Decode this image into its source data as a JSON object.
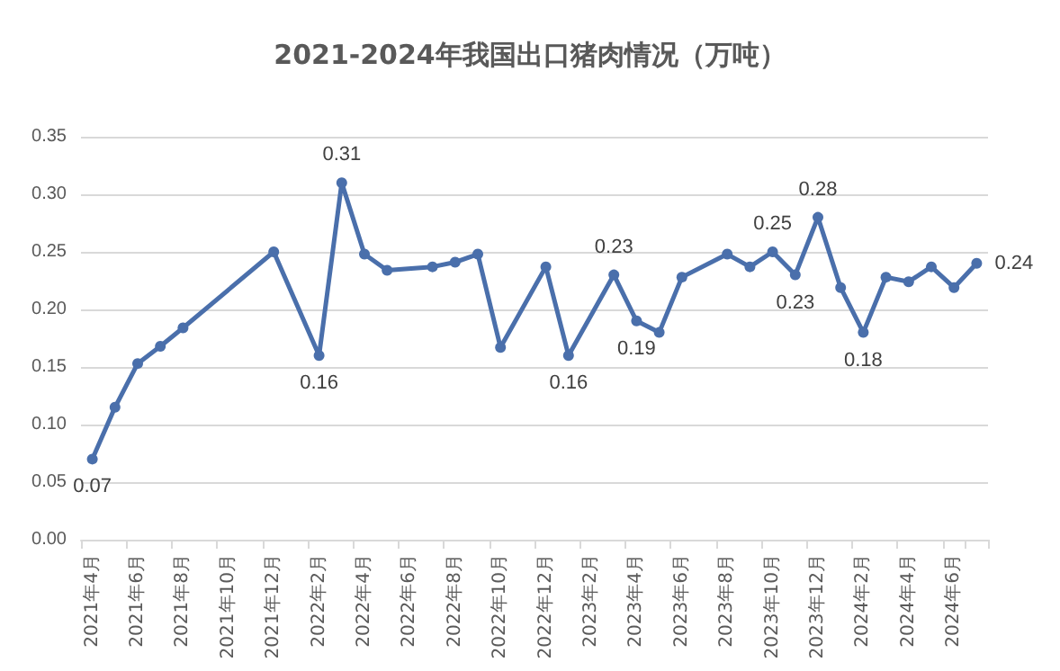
{
  "chart_data": {
    "type": "line",
    "title": "2021-2024年我国出口猪肉情况（万吨）",
    "categories": [
      "2021年4月",
      null,
      "2021年6月",
      null,
      "2021年8月",
      null,
      "2021年10月",
      null,
      "2021年12月",
      null,
      "2022年2月",
      null,
      "2022年4月",
      null,
      "2022年6月",
      null,
      "2022年8月",
      null,
      "2022年10月",
      null,
      "2022年12月",
      null,
      "2023年2月",
      null,
      "2023年4月",
      null,
      "2023年6月",
      null,
      "2023年8月",
      null,
      "2023年10月",
      null,
      "2023年12月",
      null,
      "2024年2月",
      null,
      "2024年4月",
      null,
      "2024年6月",
      null
    ],
    "series": [
      {
        "color": "#4a6fab",
        "values": [
          0.07,
          0.115,
          0.153,
          0.168,
          0.184,
          null,
          null,
          null,
          0.25,
          null,
          0.16,
          0.31,
          0.248,
          0.234,
          null,
          0.237,
          0.241,
          0.248,
          0.167,
          null,
          0.237,
          0.16,
          null,
          0.23,
          0.19,
          0.18,
          0.228,
          null,
          0.248,
          0.237,
          0.25,
          0.23,
          0.28,
          0.219,
          0.18,
          0.228,
          0.224,
          0.237,
          0.219,
          0.24
        ],
        "value_labels": [
          "0.07",
          null,
          null,
          null,
          null,
          null,
          null,
          null,
          null,
          null,
          "0.16",
          "0.31",
          null,
          null,
          null,
          null,
          null,
          null,
          null,
          null,
          null,
          "0.16",
          null,
          "0.23",
          "0.19",
          null,
          null,
          null,
          null,
          null,
          "0.25",
          "0.23",
          "0.28",
          null,
          "0.18",
          null,
          null,
          null,
          null,
          "0.24"
        ]
      }
    ],
    "ylim": [
      0,
      0.35
    ],
    "yticks": [
      {
        "value": 0,
        "label": "0.00"
      },
      {
        "value": 0.05,
        "label": "0.05"
      },
      {
        "value": 0.1,
        "label": "0.10"
      },
      {
        "value": 0.15,
        "label": "0.15"
      },
      {
        "value": 0.2,
        "label": "0.20"
      },
      {
        "value": 0.25,
        "label": "0.25"
      },
      {
        "value": 0.3,
        "label": "0.30"
      },
      {
        "value": 0.35,
        "label": "0.35"
      }
    ],
    "grid": "y",
    "marker": "circle",
    "line_style": "solid"
  }
}
